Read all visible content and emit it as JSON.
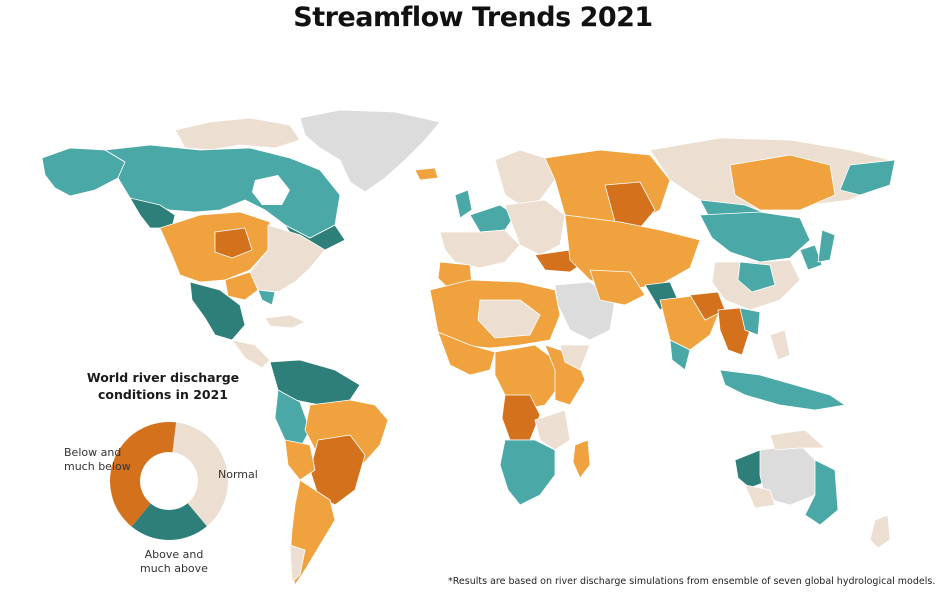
{
  "title": "Streamflow Trends 2021",
  "legend": {
    "title_line1": "World river discharge",
    "title_line2": "conditions in 2021",
    "categories": [
      {
        "key": "below",
        "line1": "Below and",
        "line2": "much below",
        "color": "#d4711d",
        "share": 0.41
      },
      {
        "key": "normal",
        "line1": "Normal",
        "color": "#ecdfd2",
        "share": 0.37
      },
      {
        "key": "above",
        "line1": "Above and",
        "line2": "much above",
        "color": "#2e7f79",
        "share": 0.22
      }
    ]
  },
  "map_colors": {
    "ocean": "#ffffff",
    "no_data": "#dcdcdc",
    "normal": "#ecdfd2",
    "below": "#efa23e",
    "much_below": "#d4711d",
    "above": "#4aa8a6",
    "much_above": "#2e7f79",
    "border": "#ffffff"
  },
  "footnote": "*Results are based on river discharge simulations from ensemble of seven global hydrological models."
}
